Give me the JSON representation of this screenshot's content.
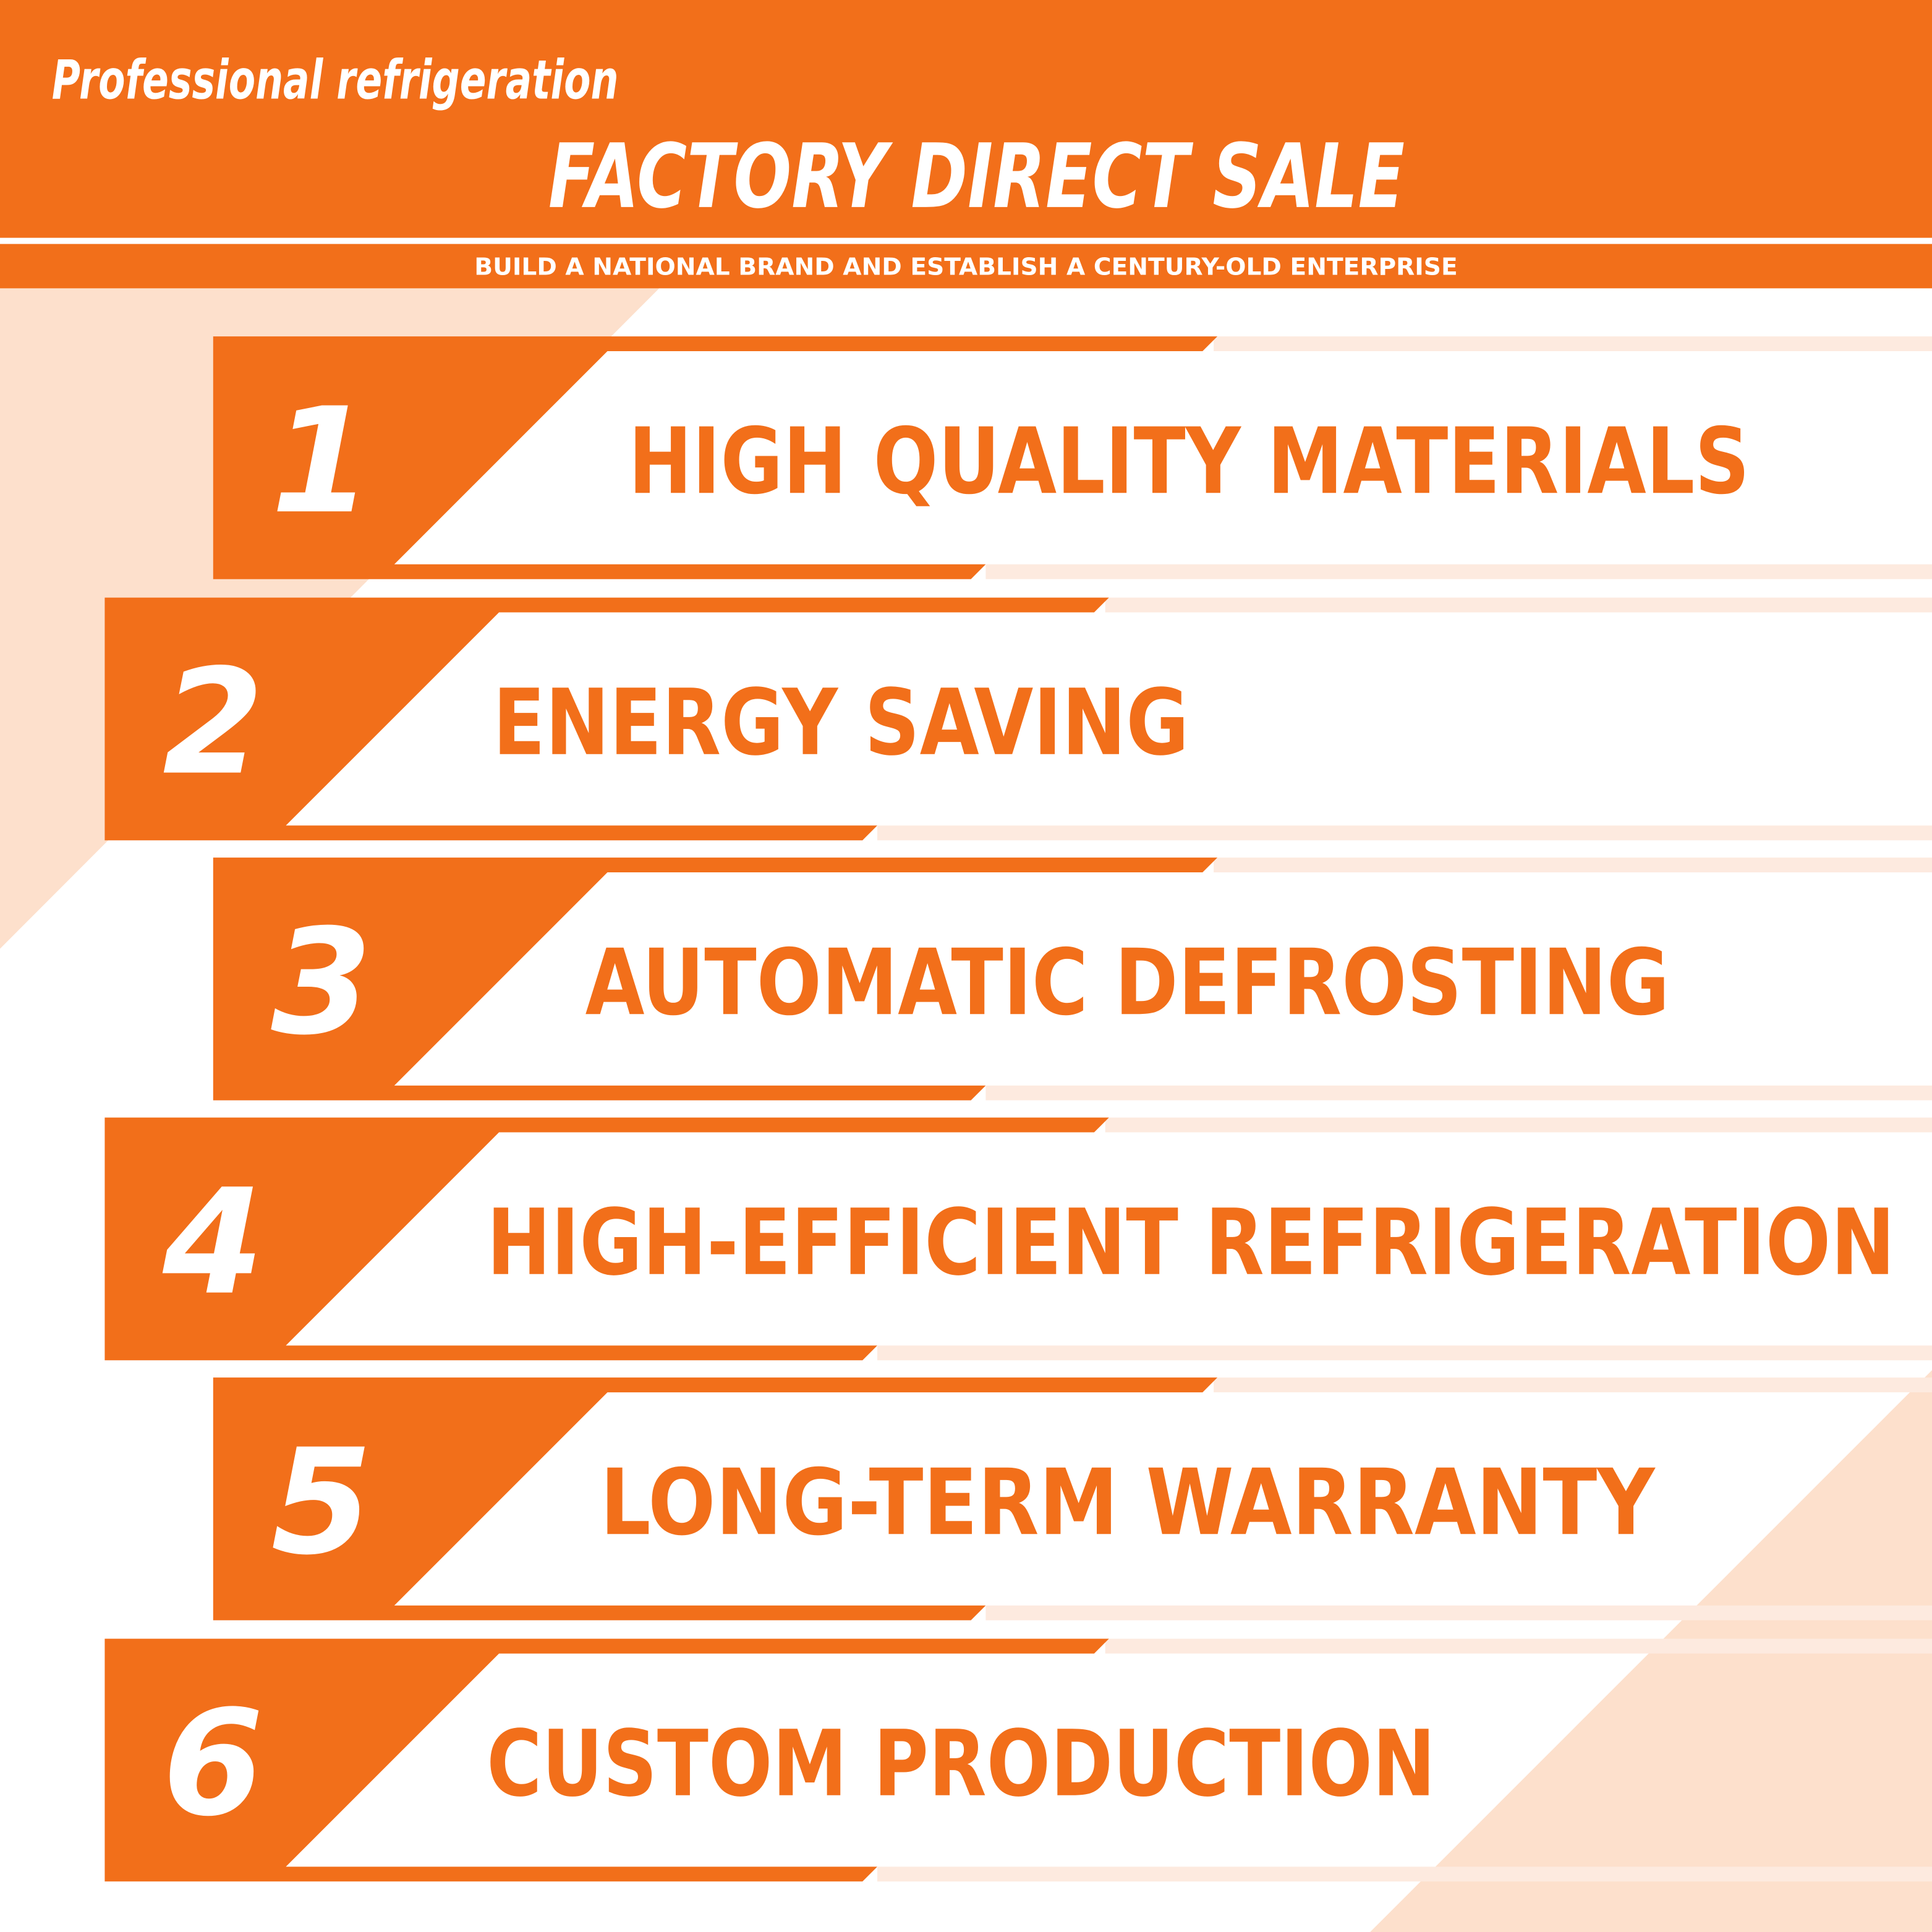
{
  "colors": {
    "brand": "#F26F1A",
    "peach": "#FDE0CC",
    "faded": "#FDEADF",
    "text_on_brand": "#FFFFFF"
  },
  "header": {
    "tagline": "Professional refrigeration",
    "title": "FACTORY DIRECT SALE",
    "subtitle": "BUILD A NATIONAL BRAND AND ESTABLISH A CENTURY-OLD ENTERPRISE"
  },
  "features": [
    {
      "number": "1",
      "label": "HIGH QUALITY MATERIALS"
    },
    {
      "number": "2",
      "label": "ENERGY SAVING"
    },
    {
      "number": "3",
      "label": "AUTOMATIC DEFROSTING"
    },
    {
      "number": "4",
      "label": "HIGH-EFFICIENT REFRIGERATION"
    },
    {
      "number": "5",
      "label": "LONG-TERM WARRANTY"
    },
    {
      "number": "6",
      "label": "CUSTOM PRODUCTION"
    }
  ]
}
